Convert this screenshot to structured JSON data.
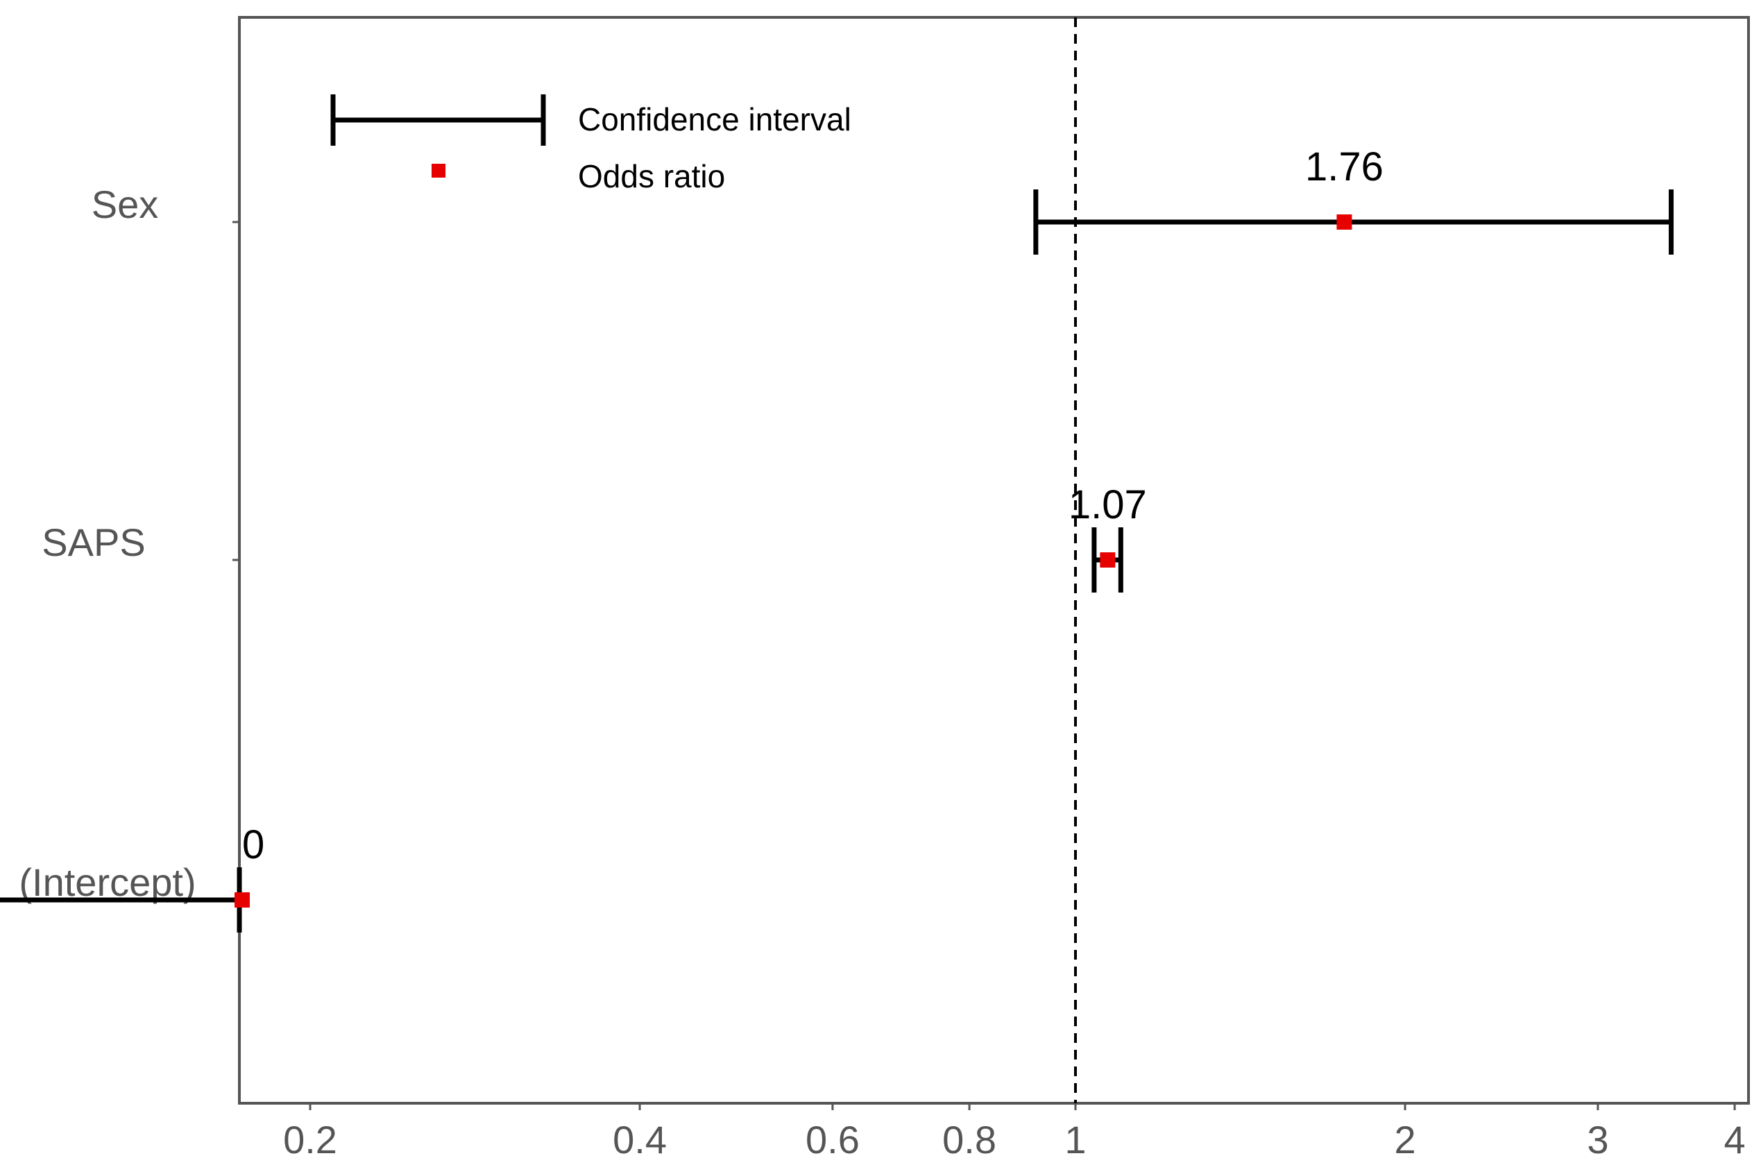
{
  "chart_data": {
    "type": "scatter",
    "x_scale": "log",
    "x_ticks": [
      0.2,
      0.4,
      0.6,
      0.8,
      1,
      2,
      3,
      4
    ],
    "x_tick_labels": [
      "0.2",
      "0.4",
      "0.6",
      "0.8",
      "1",
      "2",
      "3",
      "4"
    ],
    "xlim": [
      0.04,
      4.4
    ],
    "reference_line": 1,
    "categories": [
      "Sex",
      "SAPS",
      "(Intercept)"
    ],
    "odds_ratio": [
      1.76,
      1.07,
      0.04
    ],
    "ci_lower": [
      0.92,
      1.04,
      0.04
    ],
    "ci_upper": [
      3.5,
      1.1,
      0.06
    ],
    "value_labels": [
      "1.76",
      "1.07",
      "0"
    ],
    "legend": {
      "position": "top-left",
      "entries": [
        "Confidence interval",
        "Odds ratio"
      ]
    },
    "colors": {
      "point": "#e60000",
      "bar": "#000000",
      "axis": "#555555"
    },
    "grid": false
  }
}
